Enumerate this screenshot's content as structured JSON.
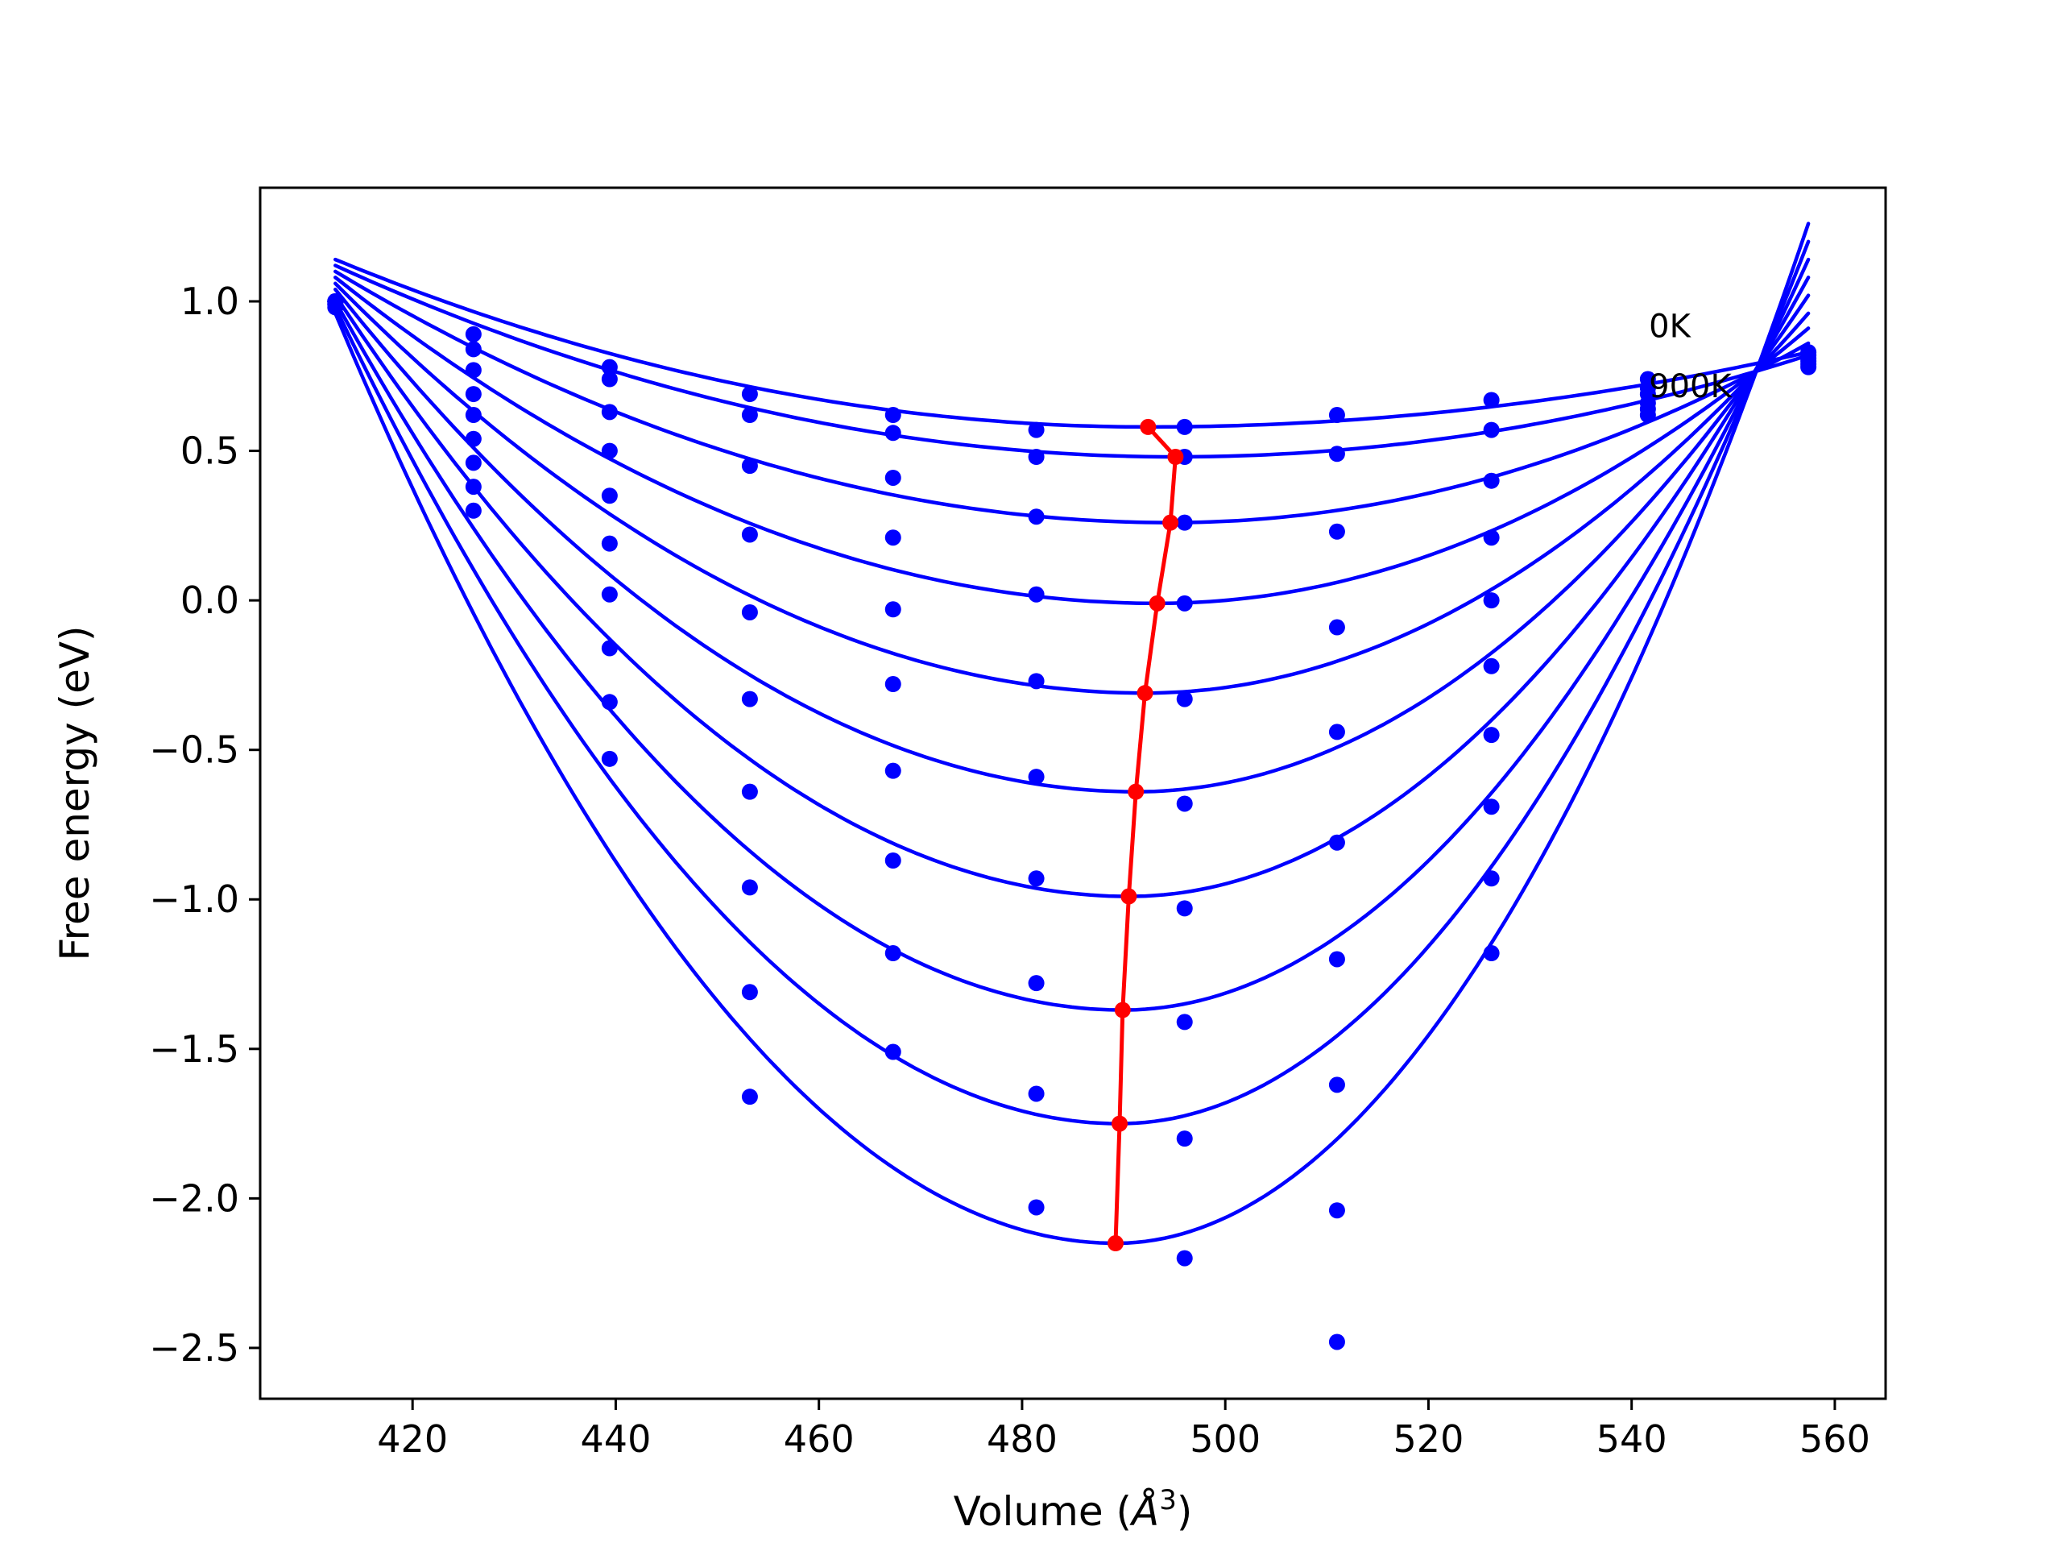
{
  "chart_data": {
    "type": "scatter",
    "title": "",
    "xlabel": "Volume (",
    "xlabel_symbol": "Å",
    "xlabel_exp": "3",
    "xlabel_end": ")",
    "ylabel": "Free energy (eV)",
    "xlim": [
      405,
      565
    ],
    "ylim": [
      -2.67,
      1.38
    ],
    "xticks": [
      420,
      440,
      460,
      480,
      500,
      520,
      540,
      560
    ],
    "xtick_labels": [
      "420",
      "440",
      "460",
      "480",
      "500",
      "520",
      "540",
      "560"
    ],
    "yticks": [
      1.0,
      0.5,
      0.0,
      -0.5,
      -1.0,
      -1.5,
      -2.0,
      -2.5
    ],
    "ytick_labels": [
      "1.0",
      "0.5",
      "0.0",
      "−0.5",
      "−1.0",
      "−1.5",
      "−2.0",
      "−2.5"
    ],
    "grid": false,
    "volumes": [
      412.4,
      426.0,
      439.4,
      453.2,
      467.3,
      481.4,
      496.0,
      511.0,
      526.2,
      541.6,
      557.4
    ],
    "series": [
      {
        "temperature_index": 0,
        "color": "#0000ff",
        "points": [
          0.98,
          0.89,
          0.78,
          0.69,
          0.62,
          0.57,
          0.58,
          0.62,
          0.67,
          0.74,
          0.83
        ],
        "fit_min": [
          492.4,
          0.58
        ],
        "fit_ends": [
          1.14,
          0.83
        ]
      },
      {
        "temperature_index": 1,
        "color": "#0000ff",
        "points": [
          0.99,
          0.84,
          0.74,
          0.62,
          0.56,
          0.48,
          0.48,
          0.49,
          0.57,
          0.71,
          0.82
        ],
        "fit_min": [
          495.1,
          0.48
        ],
        "fit_ends": [
          1.12,
          0.82
        ]
      },
      {
        "temperature_index": 2,
        "color": "#0000ff",
        "points": [
          0.99,
          0.77,
          0.63,
          0.45,
          0.41,
          0.28,
          0.26,
          0.23,
          0.4,
          0.69,
          0.81
        ],
        "fit_min": [
          494.6,
          0.26
        ],
        "fit_ends": [
          1.1,
          0.86
        ]
      },
      {
        "temperature_index": 3,
        "color": "#0000ff",
        "points": [
          1.0,
          0.69,
          0.5,
          0.22,
          0.21,
          0.02,
          -0.01,
          -0.09,
          0.21,
          0.66,
          0.8
        ],
        "fit_min": [
          493.3,
          -0.01
        ],
        "fit_ends": [
          1.08,
          0.91
        ]
      },
      {
        "temperature_index": 4,
        "color": "#0000ff",
        "points": [
          1.0,
          0.62,
          0.35,
          -0.04,
          -0.03,
          -0.27,
          -0.33,
          -0.44,
          0.0,
          0.64,
          0.79
        ],
        "fit_min": [
          492.1,
          -0.31
        ],
        "fit_ends": [
          1.06,
          0.96
        ]
      },
      {
        "temperature_index": 5,
        "color": "#0000ff",
        "points": [
          1.0,
          0.54,
          0.19,
          -0.33,
          -0.28,
          -0.59,
          -0.68,
          -0.81,
          -0.22,
          0.62,
          0.78
        ],
        "fit_min": [
          491.2,
          -0.64
        ],
        "fit_ends": [
          1.04,
          1.02
        ]
      },
      {
        "temperature_index": 6,
        "color": "#0000ff",
        "points": [
          1.0,
          0.46,
          0.02,
          -0.64,
          -0.57,
          -0.93,
          -1.03,
          -1.2,
          -0.45,
          null,
          null
        ],
        "fit_min": [
          490.5,
          -0.99
        ],
        "fit_ends": [
          1.02,
          1.08
        ]
      },
      {
        "temperature_index": 7,
        "color": "#0000ff",
        "points": [
          1.0,
          0.38,
          -0.16,
          -0.96,
          -0.87,
          -1.28,
          -1.41,
          -1.62,
          -0.69,
          null,
          null
        ],
        "fit_min": [
          489.9,
          -1.37
        ],
        "fit_ends": [
          1.0,
          1.14
        ]
      },
      {
        "temperature_index": 8,
        "color": "#0000ff",
        "points": [
          1.0,
          0.3,
          -0.34,
          -1.31,
          -1.18,
          -1.65,
          -1.8,
          -2.04,
          -0.93,
          null,
          null
        ],
        "fit_min": [
          489.6,
          -1.75
        ],
        "fit_ends": [
          0.98,
          1.2
        ]
      },
      {
        "temperature_index": 9,
        "color": "#0000ff",
        "points": [
          null,
          null,
          -0.53,
          -1.66,
          -1.51,
          -2.03,
          -2.2,
          -2.48,
          -1.18,
          null,
          null
        ],
        "fit_min": [
          489.2,
          -2.15
        ],
        "fit_ends": [
          0.96,
          1.26
        ]
      }
    ],
    "equilibrium_line": {
      "color": "#ff0000",
      "x": [
        492.4,
        495.1,
        494.6,
        493.3,
        492.1,
        491.2,
        490.5,
        489.9,
        489.6,
        489.2
      ],
      "y": [
        0.58,
        0.48,
        0.26,
        -0.01,
        -0.31,
        -0.64,
        -0.99,
        -1.37,
        -1.75,
        -2.15
      ]
    },
    "annotations": [
      {
        "text": "0K",
        "x": 541.7,
        "y": 0.88
      },
      {
        "text": "900K",
        "x": 541.7,
        "y": 0.68
      }
    ]
  }
}
